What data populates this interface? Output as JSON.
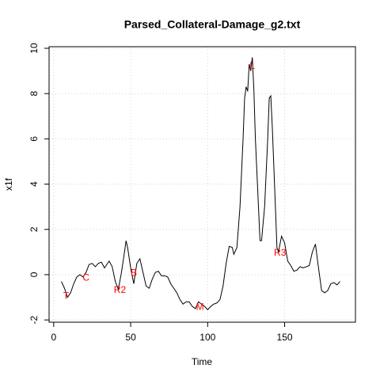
{
  "chart_data": {
    "type": "line",
    "title": "Parsed_Collateral-Damage_g2.txt",
    "x_label": "Time",
    "y_label": "x1f",
    "x": [
      5,
      7,
      9,
      11,
      13,
      15,
      17,
      19,
      21,
      23,
      25,
      27,
      29,
      31,
      33,
      35,
      36,
      38,
      40,
      42,
      44,
      46,
      47,
      48,
      50,
      52,
      54,
      56,
      58,
      60,
      62,
      64,
      66,
      68,
      70,
      72,
      74,
      76,
      78,
      80,
      82,
      84,
      86,
      88,
      90,
      92,
      94,
      96,
      98,
      100,
      102,
      104,
      106,
      108,
      110,
      112,
      114,
      116,
      117,
      119,
      121,
      123,
      124,
      125,
      126,
      127,
      128,
      129,
      130,
      131,
      133,
      134,
      135,
      137,
      139,
      140,
      141,
      142,
      144,
      145,
      146,
      148,
      150,
      152,
      154,
      156,
      158,
      160,
      162,
      164,
      166,
      168,
      170,
      172,
      174,
      176,
      178,
      180,
      182,
      184,
      186
    ],
    "values": [
      -0.3,
      -0.6,
      -1.0,
      -0.8,
      -0.4,
      -0.1,
      0.0,
      -0.1,
      0.1,
      0.45,
      0.5,
      0.35,
      0.5,
      0.55,
      0.3,
      0.5,
      0.6,
      0.35,
      -0.3,
      -0.65,
      0.1,
      1.0,
      1.5,
      1.2,
      0.3,
      -0.4,
      0.5,
      0.7,
      0.1,
      -0.5,
      -0.6,
      -0.2,
      0.1,
      0.15,
      -0.05,
      -0.05,
      -0.1,
      -0.4,
      -0.6,
      -0.8,
      -1.1,
      -1.3,
      -1.2,
      -1.2,
      -1.4,
      -1.5,
      -1.2,
      -1.3,
      -1.4,
      -1.55,
      -1.4,
      -1.3,
      -1.25,
      -1.1,
      -0.5,
      0.5,
      1.25,
      1.2,
      0.9,
      1.2,
      3.0,
      6.0,
      7.8,
      8.3,
      8.1,
      9.3,
      9.0,
      9.6,
      8.2,
      6.0,
      3.0,
      1.5,
      1.5,
      3.0,
      6.0,
      7.8,
      7.9,
      6.5,
      3.0,
      1.2,
      1.0,
      1.7,
      1.4,
      0.6,
      0.4,
      0.15,
      0.2,
      0.35,
      0.3,
      0.35,
      0.4,
      1.0,
      1.35,
      0.3,
      -0.7,
      -0.8,
      -0.7,
      -0.4,
      -0.35,
      -0.45,
      -0.3
    ],
    "color": "#000000",
    "xlim": [
      -3,
      196
    ],
    "ylim": [
      -2.1,
      10.07
    ],
    "xticks": [
      0,
      50,
      100,
      150
    ],
    "yticks": [
      -2,
      0,
      2,
      4,
      6,
      8,
      10
    ],
    "grid": true,
    "annotations": [
      {
        "text": "T",
        "x": 8,
        "y": -0.95,
        "color": "#ff0000"
      },
      {
        "text": "C",
        "x": 21,
        "y": -0.15,
        "color": "#ff0000"
      },
      {
        "text": "R2",
        "x": 43,
        "y": -0.7,
        "color": "#ff0000"
      },
      {
        "text": "B",
        "x": 52,
        "y": 0.05,
        "color": "#ff0000"
      },
      {
        "text": "M",
        "x": 95,
        "y": -1.45,
        "color": "#ff0000"
      },
      {
        "text": "L",
        "x": 129,
        "y": 9.2,
        "color": "#ff0000"
      },
      {
        "text": "R3",
        "x": 147,
        "y": 0.95,
        "color": "#ff0000"
      }
    ]
  }
}
